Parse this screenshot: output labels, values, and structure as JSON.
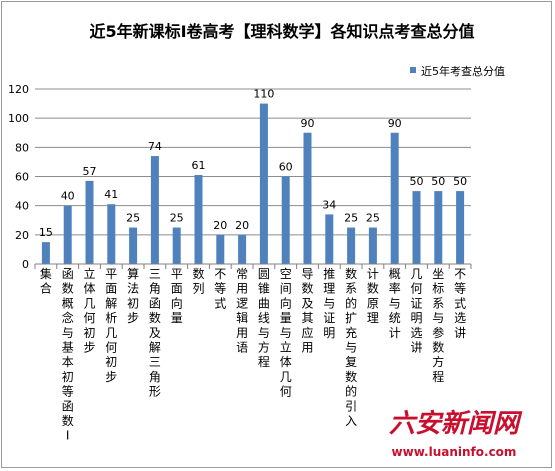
{
  "chart_data": {
    "type": "bar",
    "title": "近5年新课标I卷高考【理科数学】各知识点考查总分值",
    "categories": [
      "集合",
      "函数概念与基本初等函数I",
      "立体几何初步",
      "平面解析几何初步",
      "算法初步",
      "三角函数及解三角形",
      "平面向量",
      "数列",
      "不等式",
      "常用逻辑用语",
      "圆锥曲线与方程",
      "空间向量与立体几何",
      "导数及其应用",
      "推理与证明",
      "数系的扩充与复数的引入",
      "计数原理",
      "概率与统计",
      "几何证明选讲",
      "坐标系与参数方程",
      "不等式选讲"
    ],
    "series": [
      {
        "name": "近5年考查总分值",
        "values": [
          15,
          40,
          57,
          41,
          25,
          74,
          25,
          61,
          20,
          20,
          110,
          60,
          90,
          34,
          25,
          25,
          90,
          50,
          50,
          50
        ],
        "color": "#4f81bd"
      }
    ],
    "yticks": [
      "0",
      "20",
      "40",
      "60",
      "80",
      "100",
      "120"
    ],
    "ylim": [
      0,
      120
    ],
    "legend_position": "top-right",
    "grid": true
  },
  "watermark": {
    "logo_text": "六安新闻网",
    "url": "www.luaninfo.com",
    "color": "#c8102e"
  }
}
